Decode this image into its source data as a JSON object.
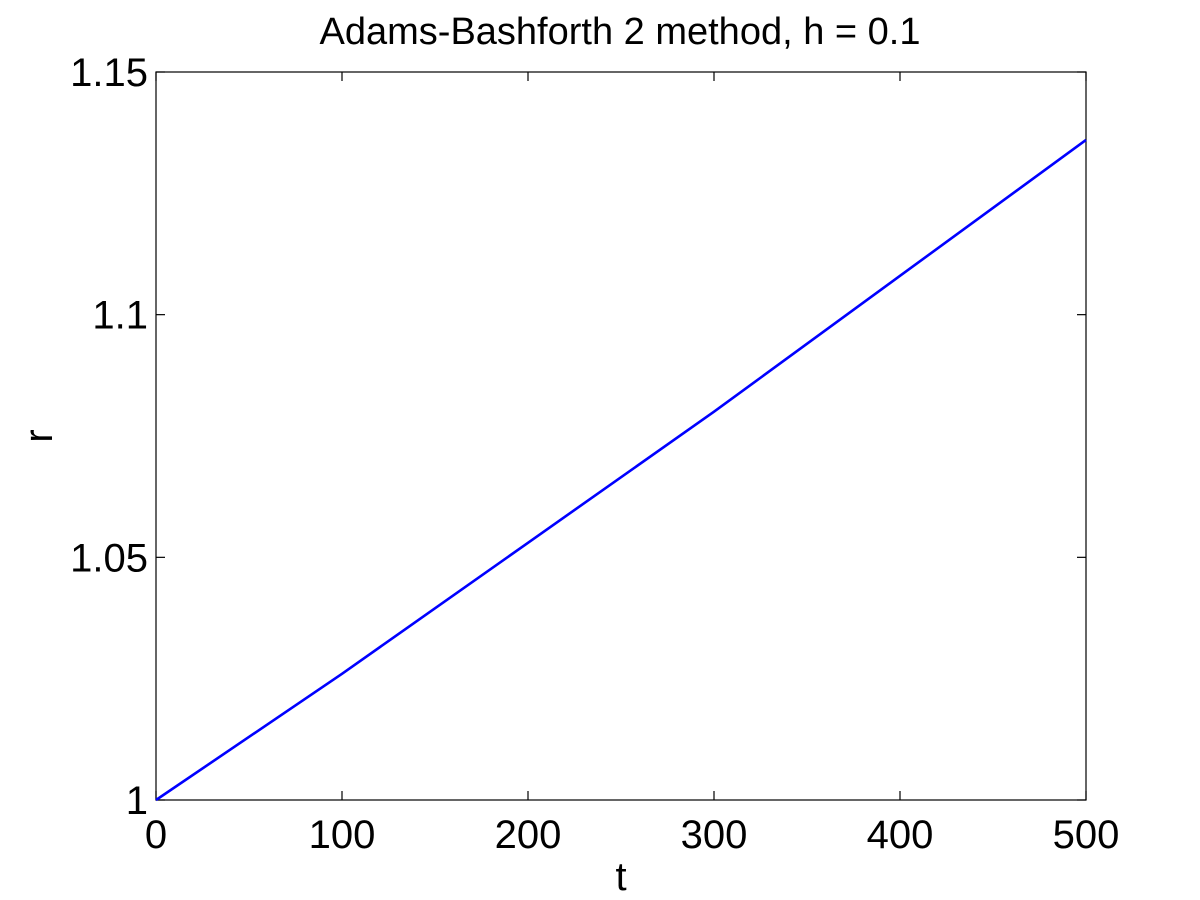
{
  "chart_data": {
    "type": "line",
    "title": "Adams-Bashforth 2 method, h = 0.1",
    "xlabel": "t",
    "ylabel": "r",
    "xlim": [
      0,
      500
    ],
    "ylim": [
      1,
      1.15
    ],
    "xticks": [
      0,
      100,
      200,
      300,
      400,
      500
    ],
    "xtick_labels": [
      "0",
      "100",
      "200",
      "300",
      "400",
      "500"
    ],
    "yticks": [
      1,
      1.05,
      1.1,
      1.15
    ],
    "ytick_labels": [
      "1",
      "1.05",
      "1.1",
      "1.15"
    ],
    "grid": false,
    "legend": "none",
    "series": [
      {
        "color": "#0000ff",
        "x": [
          0,
          100,
          200,
          300,
          400,
          500
        ],
        "y": [
          1.0,
          1.026,
          1.053,
          1.08,
          1.108,
          1.136
        ]
      }
    ]
  }
}
